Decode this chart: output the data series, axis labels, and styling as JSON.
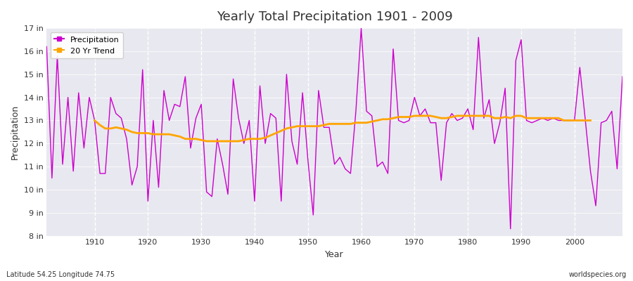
{
  "title": "Yearly Total Precipitation 1901 - 2009",
  "xlabel": "Year",
  "ylabel": "Precipitation",
  "subtitle": "Latitude 54.25 Longitude 74.75",
  "watermark": "worldspecies.org",
  "background_color": "#ffffff",
  "plot_bg_color": "#e8e8f0",
  "precip_color": "#cc00cc",
  "trend_color": "#ffa500",
  "ylim": [
    8,
    17
  ],
  "ytick_labels": [
    "8 in",
    "9 in",
    "10 in",
    "11 in",
    "12 in",
    "13 in",
    "14 in",
    "15 in",
    "16 in",
    "17 in"
  ],
  "ytick_values": [
    8,
    9,
    10,
    11,
    12,
    13,
    14,
    15,
    16,
    17
  ],
  "years": [
    1901,
    1902,
    1903,
    1904,
    1905,
    1906,
    1907,
    1908,
    1909,
    1910,
    1911,
    1912,
    1913,
    1914,
    1915,
    1916,
    1917,
    1918,
    1919,
    1920,
    1921,
    1922,
    1923,
    1924,
    1925,
    1926,
    1927,
    1928,
    1929,
    1930,
    1931,
    1932,
    1933,
    1934,
    1935,
    1936,
    1937,
    1938,
    1939,
    1940,
    1941,
    1942,
    1943,
    1944,
    1945,
    1946,
    1947,
    1948,
    1949,
    1950,
    1951,
    1952,
    1953,
    1954,
    1955,
    1956,
    1957,
    1958,
    1959,
    1960,
    1961,
    1962,
    1963,
    1964,
    1965,
    1966,
    1967,
    1968,
    1969,
    1970,
    1971,
    1972,
    1973,
    1974,
    1975,
    1976,
    1977,
    1978,
    1979,
    1980,
    1981,
    1982,
    1983,
    1984,
    1985,
    1986,
    1987,
    1988,
    1989,
    1990,
    1991,
    1992,
    1993,
    1994,
    1995,
    1996,
    1997,
    1998,
    1999,
    2000,
    2001,
    2002,
    2003,
    2004,
    2005,
    2006,
    2007,
    2008,
    2009
  ],
  "precip": [
    16.2,
    10.5,
    15.8,
    11.1,
    14.0,
    10.8,
    14.2,
    11.8,
    14.0,
    13.0,
    10.7,
    10.7,
    14.0,
    13.3,
    13.1,
    12.2,
    10.2,
    11.0,
    15.2,
    9.5,
    13.0,
    10.1,
    14.3,
    13.0,
    13.7,
    13.6,
    14.9,
    11.8,
    13.1,
    13.7,
    9.9,
    9.7,
    12.2,
    11.1,
    9.8,
    14.8,
    13.1,
    12.0,
    13.0,
    9.5,
    14.5,
    12.0,
    13.3,
    13.1,
    9.5,
    15.0,
    12.1,
    11.1,
    14.2,
    11.3,
    8.9,
    14.3,
    12.7,
    12.7,
    11.1,
    11.4,
    10.9,
    10.7,
    13.4,
    17.0,
    13.4,
    13.2,
    11.0,
    11.2,
    10.7,
    16.1,
    13.0,
    12.9,
    13.0,
    14.0,
    13.2,
    13.5,
    12.9,
    12.9,
    10.4,
    12.9,
    13.3,
    13.0,
    13.1,
    13.5,
    12.6,
    16.6,
    13.1,
    13.9,
    12.0,
    12.9,
    14.4,
    8.3,
    15.6,
    16.5,
    13.0,
    12.9,
    13.0,
    13.1,
    13.0,
    13.1,
    13.0,
    13.0,
    13.0,
    13.0,
    15.3,
    13.1,
    10.8,
    9.3,
    12.9,
    13.0,
    13.4,
    10.9,
    14.9
  ],
  "trend": [
    null,
    null,
    null,
    null,
    null,
    null,
    null,
    null,
    null,
    13.0,
    12.8,
    12.65,
    12.65,
    12.7,
    12.65,
    12.6,
    12.5,
    12.45,
    12.45,
    12.45,
    12.4,
    12.4,
    12.4,
    12.4,
    12.35,
    12.3,
    12.2,
    12.2,
    12.2,
    12.15,
    12.1,
    12.1,
    12.1,
    12.1,
    12.1,
    12.1,
    12.1,
    12.15,
    12.2,
    12.2,
    12.2,
    12.25,
    12.35,
    12.45,
    12.55,
    12.65,
    12.7,
    12.75,
    12.75,
    12.75,
    12.75,
    12.75,
    12.8,
    12.85,
    12.85,
    12.85,
    12.85,
    12.85,
    12.9,
    12.9,
    12.9,
    12.95,
    13.0,
    13.05,
    13.05,
    13.1,
    13.15,
    13.15,
    13.15,
    13.2,
    13.2,
    13.2,
    13.2,
    13.15,
    13.1,
    13.1,
    13.15,
    13.2,
    13.2,
    13.2,
    13.2,
    13.2,
    13.2,
    13.2,
    13.1,
    13.1,
    13.15,
    13.1,
    13.2,
    13.2,
    13.1,
    13.1,
    13.1,
    13.1,
    13.1,
    13.1,
    13.1,
    13.0,
    13.0,
    13.0,
    13.0,
    13.0,
    13.0,
    null,
    null,
    null,
    null,
    null,
    null
  ]
}
